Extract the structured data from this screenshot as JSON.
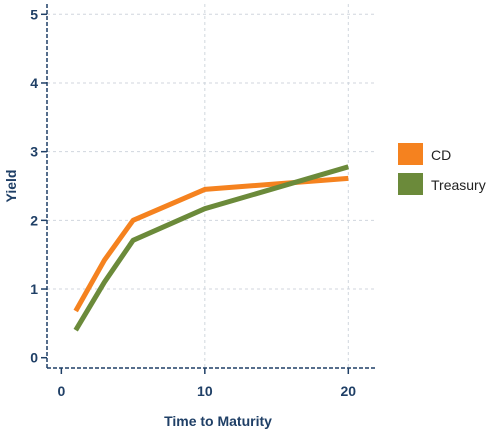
{
  "chart_data": {
    "type": "line",
    "xlabel": "Time to Maturity",
    "ylabel": "Yield",
    "xlim": [
      -1,
      22
    ],
    "ylim": [
      -0.15,
      5.15
    ],
    "x_ticks": [
      0,
      10,
      20
    ],
    "y_ticks": [
      0,
      1,
      2,
      3,
      4,
      5
    ],
    "grid": true,
    "legend_position": "right",
    "series": [
      {
        "name": "CD",
        "color": "#f5821f",
        "x": [
          1,
          3,
          5,
          10,
          20
        ],
        "y": [
          0.68,
          1.42,
          2.0,
          2.45,
          2.61
        ]
      },
      {
        "name": "Treasury",
        "color": "#6b8a3a",
        "x": [
          1,
          3,
          5,
          10,
          20
        ],
        "y": [
          0.4,
          1.1,
          1.71,
          2.17,
          2.78
        ]
      }
    ],
    "colors": {
      "axis": "#1f3f66",
      "grid": "#d0d6de"
    }
  }
}
